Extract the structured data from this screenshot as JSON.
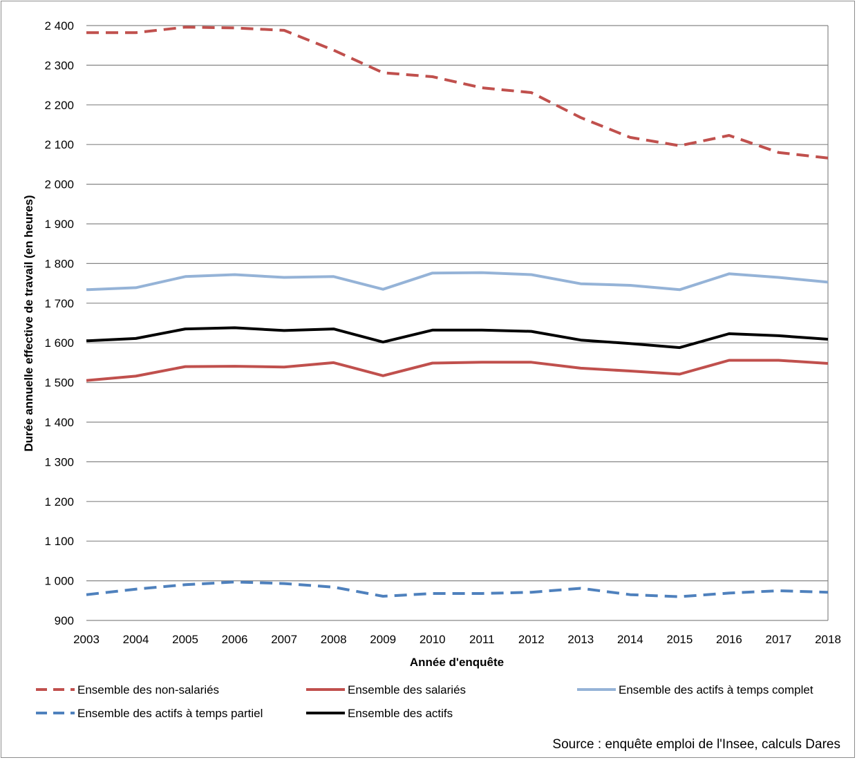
{
  "chart_data": {
    "type": "line",
    "xlabel": "Année d'enquête",
    "ylabel": "Durée annuelle effective de travail (en heures)",
    "ylim": [
      900,
      2400
    ],
    "yticks": [
      900,
      1000,
      1100,
      1200,
      1300,
      1400,
      1500,
      1600,
      1700,
      1800,
      1900,
      2000,
      2100,
      2200,
      2300,
      2400
    ],
    "ytick_labels": [
      "900",
      "1 000",
      "1 100",
      "1 200",
      "1 300",
      "1 400",
      "1 500",
      "1 600",
      "1 700",
      "1 800",
      "1 900",
      "2 000",
      "2 100",
      "2 200",
      "2 300",
      "2 400"
    ],
    "x": [
      "2003",
      "2004",
      "2005",
      "2006",
      "2007",
      "2008",
      "2009",
      "2010",
      "2011",
      "2012",
      "2013",
      "2014",
      "2015",
      "2016",
      "2017",
      "2018"
    ],
    "grid": "horizontal",
    "legend_position": "bottom",
    "series": [
      {
        "name": "Ensemble des non-salariés",
        "color": "#C0504D",
        "style": "dashed",
        "values": [
          2382,
          2382,
          2396,
          2394,
          2388,
          2338,
          2281,
          2271,
          2243,
          2231,
          2168,
          2118,
          2097,
          2123,
          2080,
          2066
        ]
      },
      {
        "name": "Ensemble des salariés",
        "color": "#C0504D",
        "style": "solid",
        "values": [
          1505,
          1516,
          1540,
          1541,
          1539,
          1550,
          1517,
          1549,
          1551,
          1551,
          1536,
          1529,
          1521,
          1556,
          1556,
          1548
        ]
      },
      {
        "name": "Ensemble des actifs à temps complet",
        "color": "#95B3D7",
        "style": "solid",
        "values": [
          1734,
          1739,
          1767,
          1772,
          1765,
          1767,
          1735,
          1776,
          1777,
          1772,
          1749,
          1745,
          1734,
          1774,
          1765,
          1753
        ]
      },
      {
        "name": "Ensemble des actifs à temps partiel",
        "color": "#4F81BD",
        "style": "dashed",
        "values": [
          965,
          979,
          990,
          997,
          993,
          984,
          961,
          968,
          968,
          971,
          981,
          965,
          960,
          969,
          975,
          971
        ]
      },
      {
        "name": "Ensemble des actifs",
        "color": "#000000",
        "style": "solid",
        "values": [
          1605,
          1611,
          1635,
          1638,
          1631,
          1635,
          1602,
          1632,
          1632,
          1629,
          1607,
          1598,
          1588,
          1623,
          1618,
          1609
        ]
      }
    ],
    "source": "Source : enquête emploi de l'Insee, calculs Dares"
  }
}
